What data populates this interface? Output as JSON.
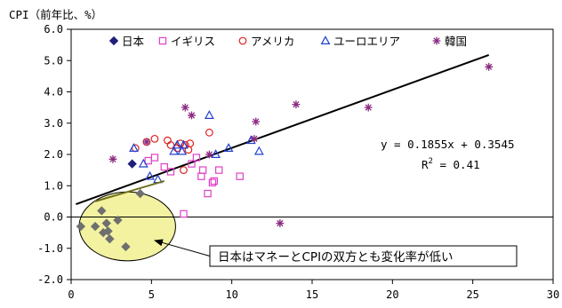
{
  "chart_data": {
    "type": "scatter",
    "ylabel": "CPI（前年比、%）",
    "xlim": [
      0,
      30
    ],
    "ylim": [
      -2,
      6
    ],
    "x_ticks": [
      0,
      5,
      10,
      15,
      20,
      25,
      30
    ],
    "y_ticks": [
      -2,
      -1,
      0,
      1,
      2,
      3,
      4,
      5,
      6
    ],
    "x_tick_labels": [
      "0",
      "5",
      "10",
      "15",
      "20",
      "25",
      "30"
    ],
    "y_tick_labels": [
      "-2.0",
      "-1.0",
      "0.0",
      "1.0",
      "2.0",
      "3.0",
      "4.0",
      "5.0",
      "6.0"
    ],
    "grid": "none",
    "legend_position": "top",
    "series": [
      {
        "name": "日本",
        "marker": "diamond",
        "color": "#1f1f7a",
        "points": [
          [
            3.8,
            1.7
          ]
        ]
      },
      {
        "name": "",
        "marker": "diamond",
        "color": "#6f6f6f",
        "points": [
          [
            0.6,
            -0.3
          ],
          [
            1.5,
            -0.3
          ],
          [
            1.9,
            0.2
          ],
          [
            2.0,
            -0.5
          ],
          [
            2.2,
            -0.2
          ],
          [
            2.3,
            -0.45
          ],
          [
            2.4,
            -0.7
          ],
          [
            2.9,
            -0.1
          ],
          [
            3.4,
            -0.95
          ],
          [
            4.3,
            0.75
          ]
        ]
      },
      {
        "name": "イギリス",
        "marker": "square",
        "color": "#e040c8",
        "points": [
          [
            4.8,
            1.8
          ],
          [
            5.2,
            1.9
          ],
          [
            5.8,
            1.6
          ],
          [
            6.2,
            1.45
          ],
          [
            7.0,
            0.1
          ],
          [
            7.5,
            1.7
          ],
          [
            7.8,
            1.9
          ],
          [
            8.1,
            1.3
          ],
          [
            8.2,
            1.5
          ],
          [
            8.5,
            0.75
          ],
          [
            8.8,
            1.1
          ],
          [
            8.9,
            1.15
          ],
          [
            9.2,
            1.5
          ],
          [
            10.5,
            1.3
          ]
        ]
      },
      {
        "name": "アメリカ",
        "marker": "circle",
        "color": "#e02020",
        "points": [
          [
            4.0,
            2.2
          ],
          [
            4.7,
            2.4
          ],
          [
            5.2,
            2.5
          ],
          [
            6.0,
            2.45
          ],
          [
            6.2,
            2.3
          ],
          [
            6.6,
            2.2
          ],
          [
            6.8,
            2.35
          ],
          [
            7.0,
            1.5
          ],
          [
            7.1,
            2.3
          ],
          [
            7.3,
            2.15
          ],
          [
            7.4,
            2.35
          ],
          [
            8.6,
            2.7
          ]
        ]
      },
      {
        "name": "ユーロエリア",
        "marker": "triangle",
        "color": "#2040d0",
        "points": [
          [
            3.9,
            2.2
          ],
          [
            4.5,
            1.7
          ],
          [
            4.9,
            1.3
          ],
          [
            5.4,
            1.2
          ],
          [
            6.4,
            2.1
          ],
          [
            6.6,
            2.3
          ],
          [
            6.9,
            2.1
          ],
          [
            7.0,
            2.3
          ],
          [
            8.6,
            3.25
          ],
          [
            9.0,
            2.0
          ],
          [
            9.8,
            2.2
          ],
          [
            11.2,
            2.45
          ],
          [
            11.7,
            2.1
          ]
        ]
      },
      {
        "name": "韓国",
        "marker": "asterisk",
        "color": "#8a2a80",
        "points": [
          [
            2.6,
            1.85
          ],
          [
            4.7,
            2.4
          ],
          [
            7.1,
            3.5
          ],
          [
            7.5,
            3.25
          ],
          [
            8.6,
            2.0
          ],
          [
            11.4,
            2.5
          ],
          [
            11.5,
            3.05
          ],
          [
            13.0,
            -0.2
          ],
          [
            14.0,
            3.6
          ],
          [
            18.5,
            3.5
          ],
          [
            26.0,
            4.8
          ]
        ]
      }
    ],
    "trendline": {
      "slope": 0.1855,
      "intercept": 0.3545,
      "x_range": [
        0.3,
        26.0
      ],
      "color": "#000000"
    },
    "japan_line": {
      "from": [
        1.5,
        0.5
      ],
      "to": [
        5.8,
        1.15
      ],
      "color": "#707020"
    },
    "equation": {
      "line1": "y = 0.1855x + 0.3545",
      "r2_prefix": "R",
      "r2_sup": "2",
      "r2_suffix": " = 0.41"
    },
    "highlight_ellipse": {
      "center": [
        3.5,
        -0.3
      ],
      "rx": 3.0,
      "ry": 1.1,
      "fill": "#f2f2a0",
      "stroke": "#000000"
    },
    "annotation": {
      "text": "日本はマネーとCPIの双方とも変化率が低い",
      "arrow_from": [
        6.6,
        -1.05
      ],
      "arrow_to": [
        5.2,
        -0.75
      ]
    }
  }
}
